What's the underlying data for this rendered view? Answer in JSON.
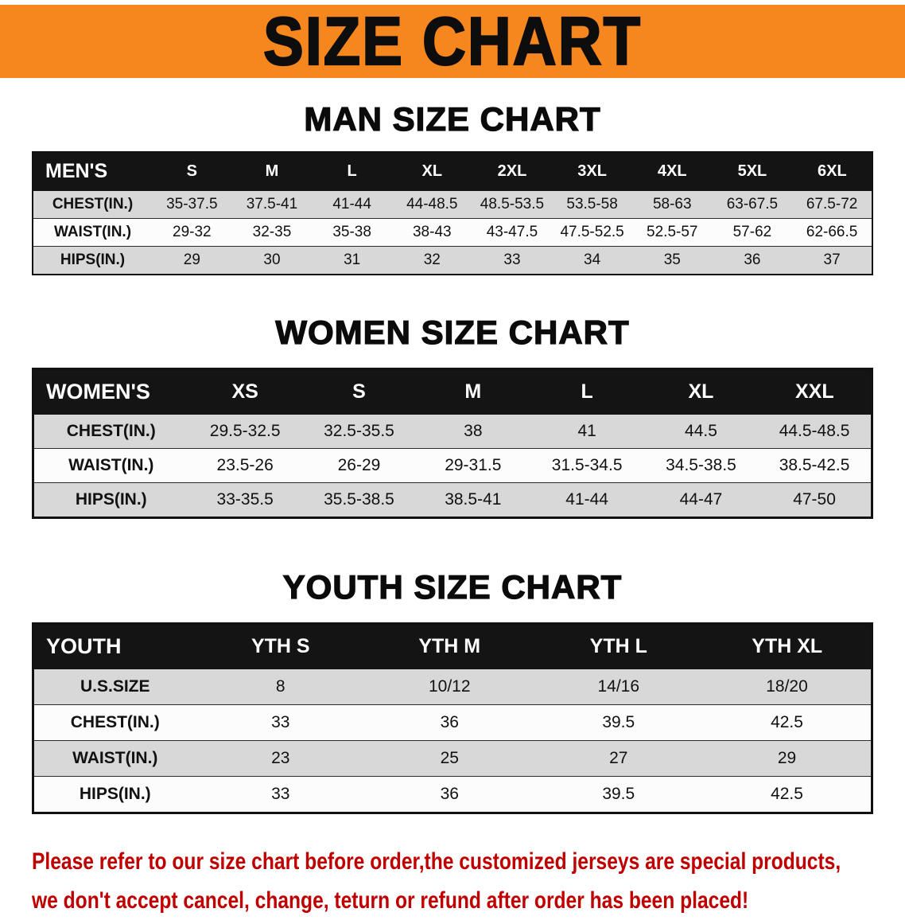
{
  "banner": {
    "title": "SIZE CHART"
  },
  "sections": [
    {
      "heading": "MAN SIZE CHART",
      "table": {
        "header": [
          "MEN'S",
          "S",
          "M",
          "L",
          "XL",
          "2XL",
          "3XL",
          "4XL",
          "5XL",
          "6XL"
        ],
        "rows": [
          {
            "label": "CHEST(IN.)",
            "values": [
              "35-37.5",
              "37.5-41",
              "41-44",
              "44-48.5",
              "48.5-53.5",
              "53.5-58",
              "58-63",
              "63-67.5",
              "67.5-72"
            ]
          },
          {
            "label": "WAIST(IN.)",
            "values": [
              "29-32",
              "32-35",
              "35-38",
              "38-43",
              "43-47.5",
              "47.5-52.5",
              "52.5-57",
              "57-62",
              "62-66.5"
            ]
          },
          {
            "label": "HIPS(IN.)",
            "values": [
              "29",
              "30",
              "31",
              "32",
              "33",
              "34",
              "35",
              "36",
              "37"
            ]
          }
        ]
      }
    },
    {
      "heading": "WOMEN SIZE CHART",
      "table": {
        "header": [
          "WOMEN'S",
          "XS",
          "S",
          "M",
          "L",
          "XL",
          "XXL"
        ],
        "rows": [
          {
            "label": "CHEST(IN.)",
            "values": [
              "29.5-32.5",
              "32.5-35.5",
              "38",
              "41",
              "44.5",
              "44.5-48.5"
            ]
          },
          {
            "label": "WAIST(IN.)",
            "values": [
              "23.5-26",
              "26-29",
              "29-31.5",
              "31.5-34.5",
              "34.5-38.5",
              "38.5-42.5"
            ]
          },
          {
            "label": "HIPS(IN.)",
            "values": [
              "33-35.5",
              "35.5-38.5",
              "38.5-41",
              "41-44",
              "44-47",
              "47-50"
            ]
          }
        ]
      }
    },
    {
      "heading": "YOUTH SIZE CHART",
      "table": {
        "header": [
          "YOUTH",
          "YTH S",
          "YTH M",
          "YTH L",
          "YTH XL"
        ],
        "rows": [
          {
            "label": "U.S.SIZE",
            "values": [
              "8",
              "10/12",
              "14/16",
              "18/20"
            ]
          },
          {
            "label": "CHEST(IN.)",
            "values": [
              "33",
              "36",
              "39.5",
              "42.5"
            ]
          },
          {
            "label": "WAIST(IN.)",
            "values": [
              "23",
              "25",
              "27",
              "29"
            ]
          },
          {
            "label": "HIPS(IN.)",
            "values": [
              "33",
              "36",
              "39.5",
              "42.5"
            ]
          }
        ]
      }
    }
  ],
  "footer": {
    "line1": "Please refer to our size chart before order,the customized jerseys are special products,",
    "line2": "we don't accept cancel, change, teturn or refund after order has been placed!"
  },
  "colors": {
    "banner_bg": "#F6871E",
    "header_bg": "#141414",
    "row_shade": "#D8D8D8",
    "footer_text": "#C00000"
  }
}
